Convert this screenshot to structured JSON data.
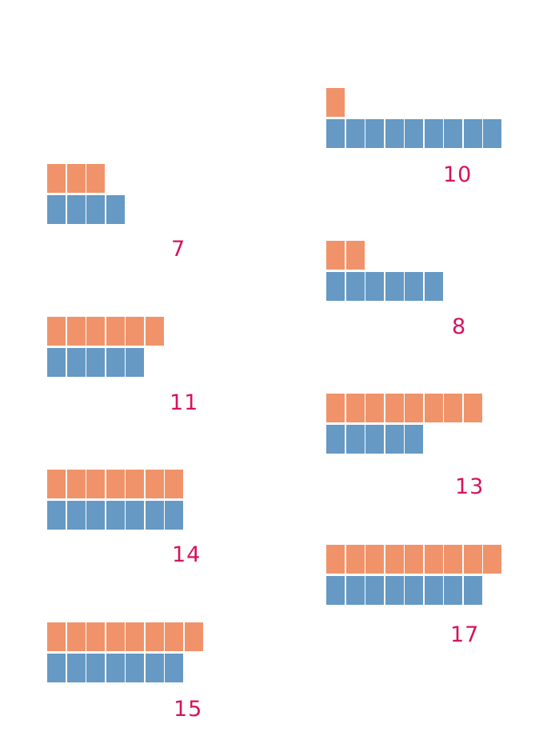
{
  "colors": {
    "top_row": "#f0936a",
    "bottom_row": "#6699c4",
    "label": "#d6135f"
  },
  "items": [
    {
      "top": 3,
      "bottom": 4,
      "total": "7"
    },
    {
      "top": 6,
      "bottom": 5,
      "total": "11"
    },
    {
      "top": 7,
      "bottom": 7,
      "total": "14"
    },
    {
      "top": 8,
      "bottom": 7,
      "total": "15"
    },
    {
      "top": 1,
      "bottom": 9,
      "total": "10"
    },
    {
      "top": 2,
      "bottom": 6,
      "total": "8"
    },
    {
      "top": 8,
      "bottom": 5,
      "total": "13"
    },
    {
      "top": 9,
      "bottom": 8,
      "total": "17"
    }
  ]
}
